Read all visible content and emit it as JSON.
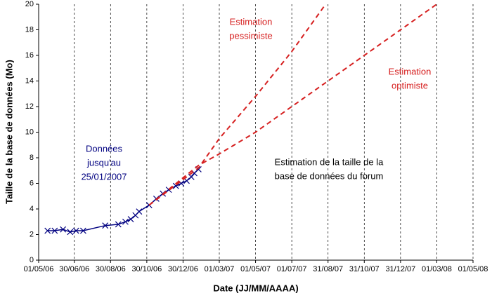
{
  "chart_data": {
    "type": "line",
    "xlabel": "Date (JJ/MM/AAAA)",
    "ylabel": "Taille de la base de données (Mo)",
    "xlim": [
      "01/05/06",
      "01/05/08"
    ],
    "xticks": [
      "01/05/06",
      "30/06/06",
      "30/08/06",
      "30/10/06",
      "30/12/06",
      "01/03/07",
      "01/05/07",
      "01/07/07",
      "31/08/07",
      "31/10/07",
      "31/12/07",
      "01/03/08",
      "01/05/08"
    ],
    "ylim": [
      0,
      20
    ],
    "yticks": [
      0,
      2,
      4,
      6,
      8,
      10,
      12,
      14,
      16,
      18,
      20
    ],
    "grid": "x",
    "series": [
      {
        "color": "#000080",
        "marker": "x",
        "dashed": false,
        "x": [
          "16/05/06",
          "28/05/06",
          "11/06/06",
          "23/06/06",
          "03/07/06",
          "15/07/06",
          "21/08/06",
          "12/09/06",
          "24/09/06",
          "03/10/06",
          "11/10/06",
          "17/10/06",
          "03/11/06",
          "15/11/06",
          "26/11/06",
          "06/12/06",
          "18/12/06",
          "27/12/06",
          "05/01/07",
          "13/01/07",
          "18/01/07",
          "25/01/07"
        ],
        "values": [
          2.3,
          2.3,
          2.4,
          2.2,
          2.3,
          2.3,
          2.7,
          2.8,
          3.0,
          3.2,
          3.5,
          3.8,
          4.3,
          4.8,
          5.2,
          5.5,
          5.8,
          6.0,
          6.2,
          6.5,
          6.8,
          7.1
        ]
      },
      {
        "color": "#d62020",
        "marker": "none",
        "dashed": true,
        "x": [
          "03/11/06",
          "25/01/07",
          "01/03/07",
          "01/05/07",
          "01/07/07",
          "27/08/07"
        ],
        "values": [
          4.3,
          7.2,
          9.5,
          12.8,
          16.3,
          20
        ]
      },
      {
        "color": "#d62020",
        "marker": "none",
        "dashed": true,
        "x": [
          "03/11/06",
          "25/01/07",
          "01/03/07",
          "01/05/07",
          "01/07/07",
          "31/08/07",
          "31/10/07",
          "31/12/07",
          "01/03/08"
        ],
        "values": [
          4.3,
          7.4,
          8.3,
          10.0,
          12.0,
          14.0,
          16.0,
          18.0,
          20.0
        ]
      }
    ],
    "annotations": [
      {
        "lines": [
          "Estimation",
          "pessimiste"
        ],
        "color": "#d62020"
      },
      {
        "lines": [
          "Estimation",
          "optimiste"
        ],
        "color": "#d62020"
      },
      {
        "lines": [
          "Données",
          "jusqu'au",
          "25/01/2007"
        ],
        "color": "#000080"
      },
      {
        "lines": [
          "Estimation de la taille de la",
          "base de données du forum"
        ],
        "color": "#000000"
      }
    ]
  }
}
